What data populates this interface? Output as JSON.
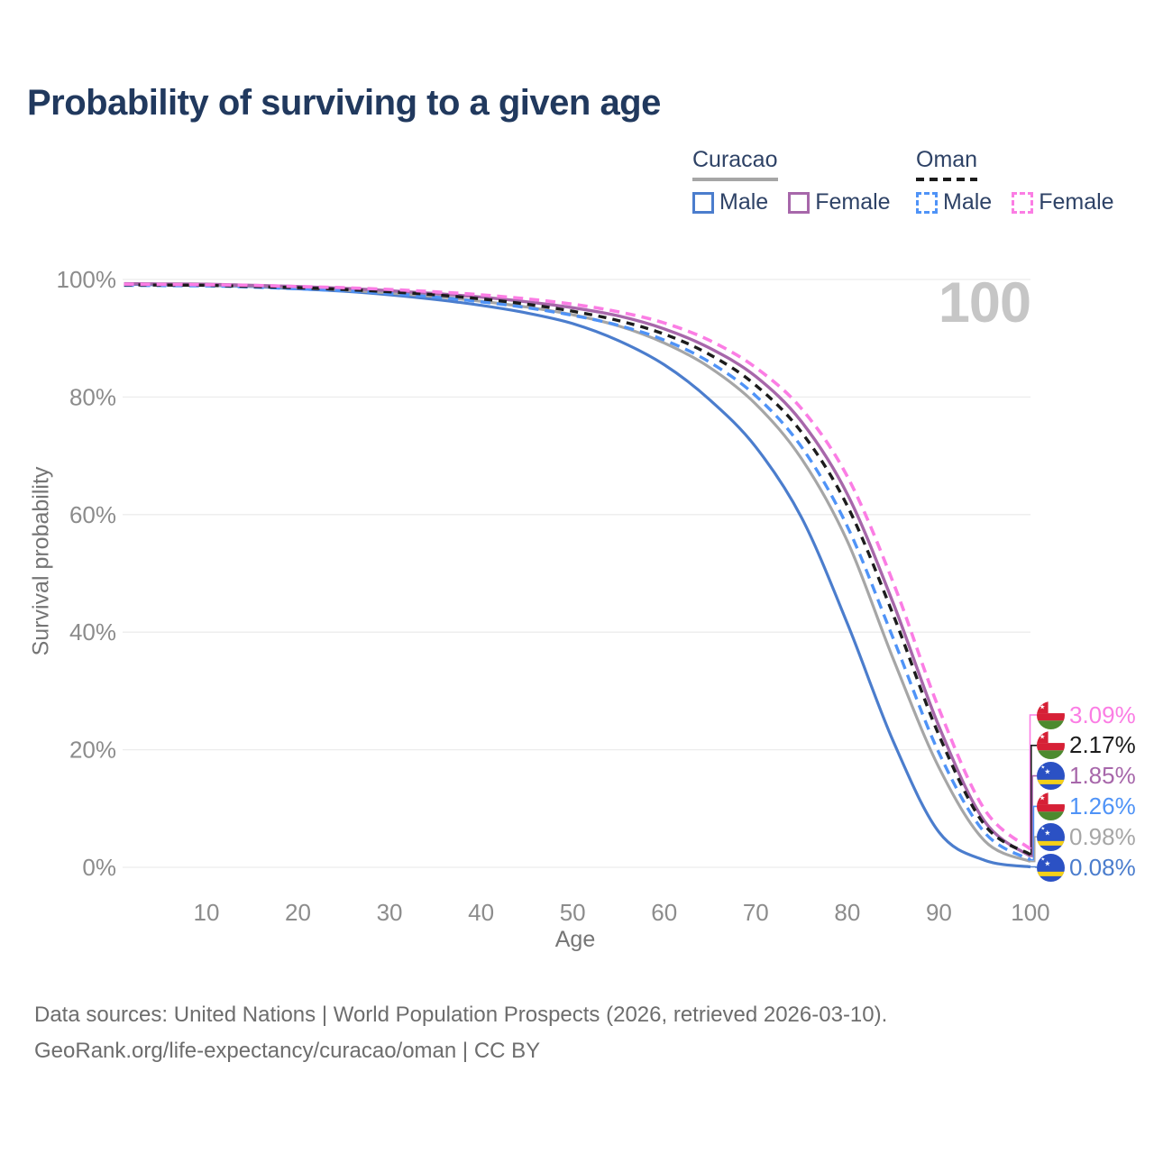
{
  "title": "Probability of surviving to a given age",
  "watermark_age": "100",
  "legend": {
    "groups": [
      {
        "name": "Curacao",
        "underline_color": "#a6a6a6",
        "underline_style": "solid",
        "items": [
          {
            "label": "Male",
            "color": "#4b7dcd",
            "dashed": false
          },
          {
            "label": "Female",
            "color": "#a767aa",
            "dashed": false
          }
        ]
      },
      {
        "name": "Oman",
        "underline_color": "#1c1c1c",
        "underline_style": "dashed",
        "items": [
          {
            "label": "Male",
            "color": "#4f93f7",
            "dashed": true
          },
          {
            "label": "Female",
            "color": "#fb7de4",
            "dashed": true
          }
        ]
      }
    ]
  },
  "chart_data": {
    "type": "line",
    "title": "Probability of surviving to a given age",
    "xlabel": "Age",
    "ylabel": "Survival probability",
    "xlim": [
      0,
      100
    ],
    "ylim": [
      0,
      100
    ],
    "grid": "horizontal",
    "x_ticks": [
      10,
      20,
      30,
      40,
      50,
      60,
      70,
      80,
      90,
      100
    ],
    "y_ticks": [
      0,
      20,
      40,
      60,
      80,
      100
    ],
    "y_tick_format": "percent",
    "ages": [
      1,
      5,
      10,
      15,
      20,
      25,
      30,
      35,
      40,
      45,
      50,
      55,
      60,
      65,
      70,
      75,
      80,
      85,
      90,
      95,
      100
    ],
    "series": [
      {
        "key": "curacao_male",
        "name": "Curacao Male",
        "color": "#4b7dcd",
        "dash": null,
        "width": 3.2,
        "values": [
          99.2,
          99.1,
          99.0,
          98.8,
          98.4,
          98.0,
          97.4,
          96.6,
          95.6,
          94.3,
          92.5,
          89.6,
          85.5,
          79.5,
          71.5,
          59.5,
          41.5,
          21.5,
          6.0,
          1.2,
          0.08
        ]
      },
      {
        "key": "curacao_total",
        "name": "Curacao",
        "color": "#a6a6a6",
        "dash": null,
        "width": 3.2,
        "values": [
          99.3,
          99.2,
          99.1,
          98.9,
          98.6,
          98.2,
          97.7,
          97.1,
          96.3,
          95.3,
          94.0,
          92.1,
          89.2,
          85.0,
          78.8,
          69.5,
          55.5,
          35.5,
          17.0,
          4.5,
          0.98
        ]
      },
      {
        "key": "curacao_female",
        "name": "Curacao Female",
        "color": "#a767aa",
        "dash": null,
        "width": 3.4,
        "values": [
          99.3,
          99.25,
          99.2,
          99.0,
          98.8,
          98.5,
          98.1,
          97.6,
          97.0,
          96.2,
          95.2,
          93.8,
          91.6,
          88.3,
          83.5,
          75.8,
          63.5,
          45.0,
          24.0,
          7.8,
          1.85
        ]
      },
      {
        "key": "oman_male",
        "name": "Oman Male",
        "color": "#4f93f7",
        "dash": "11 7",
        "width": 3.4,
        "values": [
          99.0,
          98.95,
          98.9,
          98.7,
          98.4,
          98.1,
          97.6,
          97.0,
          96.2,
          95.2,
          93.9,
          92.2,
          89.7,
          85.9,
          80.2,
          71.5,
          58.0,
          39.0,
          19.5,
          5.9,
          1.26
        ]
      },
      {
        "key": "oman_total",
        "name": "Oman",
        "color": "#1c1c1c",
        "dash": "9 7",
        "width": 3.4,
        "values": [
          99.1,
          99.05,
          99.0,
          98.8,
          98.6,
          98.3,
          97.9,
          97.4,
          96.7,
          95.8,
          94.6,
          93.0,
          90.7,
          87.2,
          82.0,
          74.0,
          61.5,
          43.0,
          22.5,
          7.2,
          2.17
        ]
      },
      {
        "key": "oman_female",
        "name": "Oman Female",
        "color": "#fb7de4",
        "dash": "11 7",
        "width": 3.6,
        "values": [
          99.2,
          99.15,
          99.1,
          99.0,
          98.8,
          98.6,
          98.3,
          97.9,
          97.4,
          96.7,
          95.8,
          94.5,
          92.6,
          89.6,
          85.0,
          78.0,
          66.5,
          48.5,
          27.0,
          9.8,
          3.09
        ]
      }
    ]
  },
  "end_labels": [
    {
      "value": "3.09%",
      "series_key": "oman_female",
      "series": "Oman Female",
      "flag": "oman",
      "color": "#fb7de4"
    },
    {
      "value": "2.17%",
      "series_key": "oman_total",
      "series": "Oman",
      "flag": "oman",
      "color": "#1c1c1c"
    },
    {
      "value": "1.85%",
      "series_key": "curacao_female",
      "series": "Curacao Female",
      "flag": "curacao",
      "color": "#a767aa"
    },
    {
      "value": "1.26%",
      "series_key": "oman_male",
      "series": "Oman Male",
      "flag": "oman",
      "color": "#4f93f7"
    },
    {
      "value": "0.98%",
      "series_key": "curacao_total",
      "series": "Curacao",
      "flag": "curacao",
      "color": "#a6a6a6"
    },
    {
      "value": "0.08%",
      "series_key": "curacao_male",
      "series": "Curacao Male",
      "flag": "curacao",
      "color": "#4b7dcd"
    }
  ],
  "footer": {
    "line1": "Data sources: United Nations | World Population Prospects (2026, retrieved 2026-03-10).",
    "line2": "GeoRank.org/life-expectancy/curacao/oman | CC BY"
  }
}
